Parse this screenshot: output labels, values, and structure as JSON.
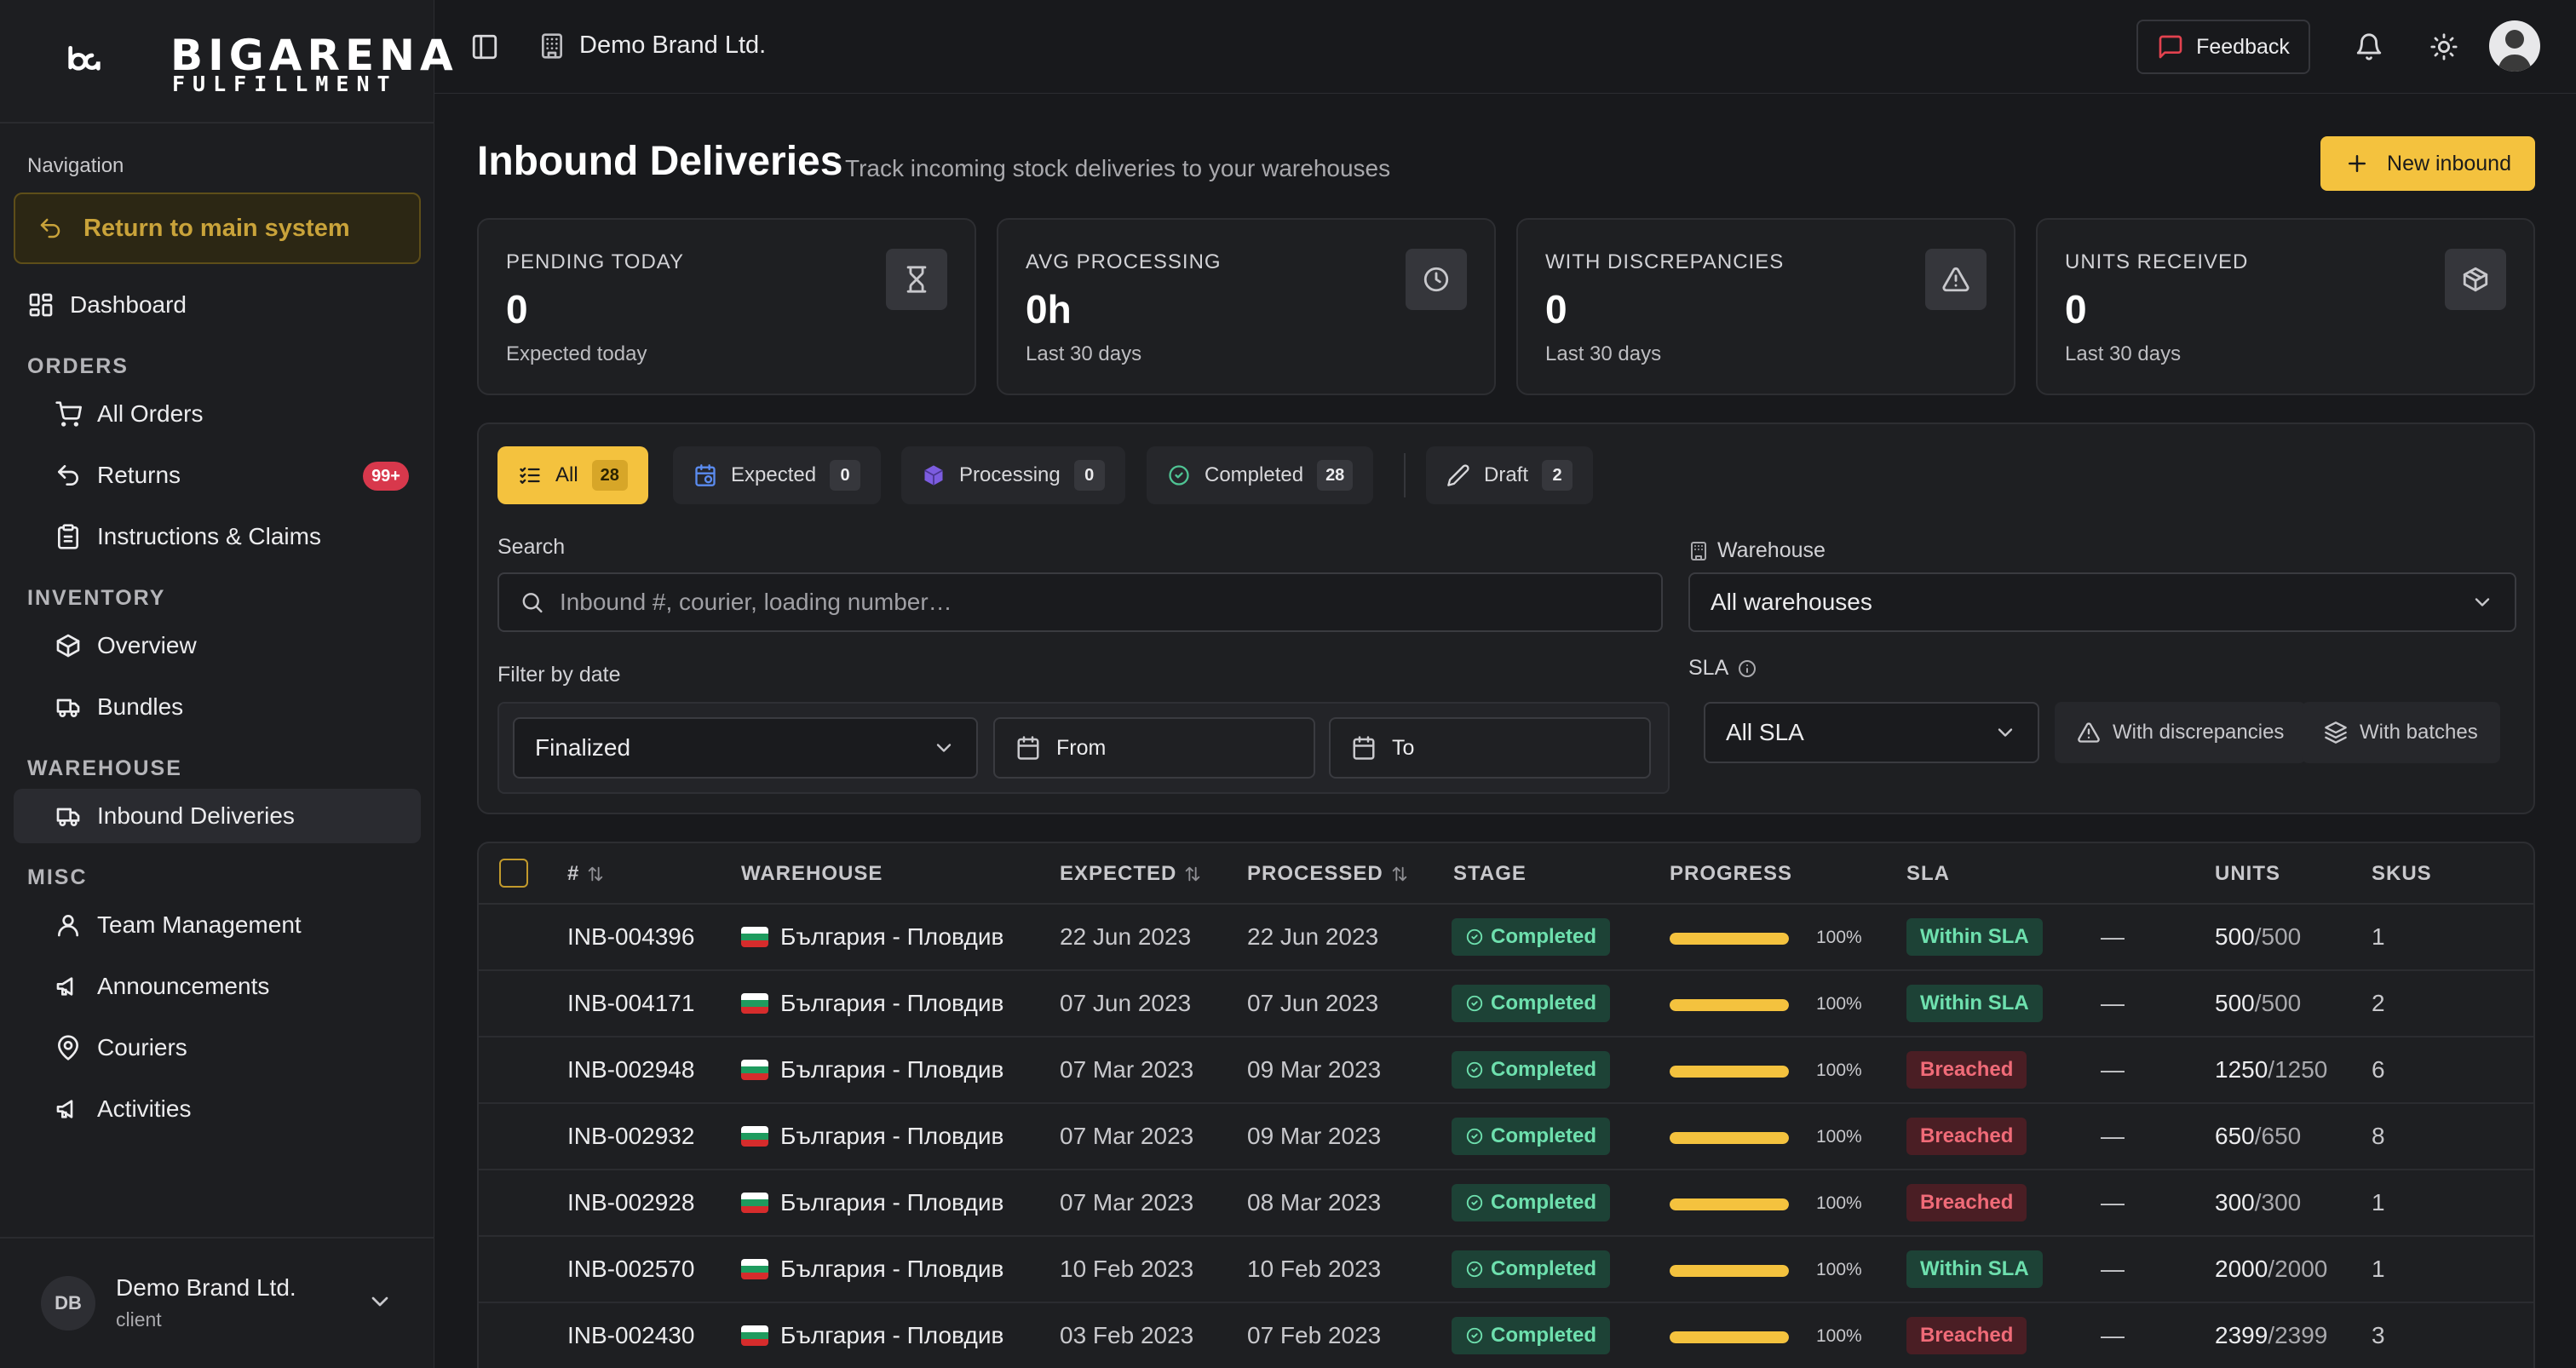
{
  "brand": {
    "logo_big": "BIGARENA",
    "logo_small": "FULFILLMENT"
  },
  "sidebar": {
    "nav_heading": "Navigation",
    "return_label": "Return to main system",
    "dashboard": "Dashboard",
    "sections": {
      "orders": "ORDERS",
      "inventory": "INVENTORY",
      "warehouse": "WAREHOUSE",
      "misc": "MISC"
    },
    "items": {
      "all_orders": "All Orders",
      "returns": "Returns",
      "returns_badge": "99+",
      "instructions": "Instructions & Claims",
      "overview": "Overview",
      "bundles": "Bundles",
      "inbound": "Inbound Deliveries",
      "team": "Team Management",
      "announcements": "Announcements",
      "couriers": "Couriers",
      "activities": "Activities"
    },
    "user": {
      "initials": "DB",
      "name": "Demo Brand Ltd.",
      "role": "client"
    }
  },
  "topbar": {
    "brand": "Demo Brand Ltd.",
    "feedback": "Feedback"
  },
  "page": {
    "title": "Inbound Deliveries",
    "subtitle": "Track incoming stock deliveries to your warehouses",
    "new_button": "New inbound"
  },
  "stats": [
    {
      "label": "PENDING TODAY",
      "value": "0",
      "note": "Expected today",
      "icon": "hourglass-icon"
    },
    {
      "label": "AVG PROCESSING",
      "value": "0h",
      "note": "Last 30 days",
      "icon": "clock-icon"
    },
    {
      "label": "WITH DISCREPANCIES",
      "value": "0",
      "note": "Last 30 days",
      "icon": "warning-icon"
    },
    {
      "label": "UNITS RECEIVED",
      "value": "0",
      "note": "Last 30 days",
      "icon": "box-icon"
    }
  ],
  "tabs": [
    {
      "label": "All",
      "count": "28"
    },
    {
      "label": "Expected",
      "count": "0"
    },
    {
      "label": "Processing",
      "count": "0"
    },
    {
      "label": "Completed",
      "count": "28"
    },
    {
      "label": "Draft",
      "count": "2"
    }
  ],
  "filters": {
    "search_label": "Search",
    "search_placeholder": "Inbound #, courier, loading number…",
    "warehouse_label": "Warehouse",
    "warehouse_value": "All warehouses",
    "date_label": "Filter by date",
    "date_mode": "Finalized",
    "from": "From",
    "to": "To",
    "sla_label": "SLA",
    "sla_value": "All SLA",
    "discrepancies": "With discrepancies",
    "batches": "With batches"
  },
  "table": {
    "headers": {
      "num": "#",
      "warehouse": "WAREHOUSE",
      "expected": "EXPECTED",
      "processed": "PROCESSED",
      "stage": "STAGE",
      "progress": "PROGRESS",
      "sla": "SLA",
      "units": "UNITS",
      "skus": "SKUS"
    },
    "rows": [
      {
        "id": "INB-004396",
        "warehouse": "България - Пловдив",
        "expected": "22 Jun 2023",
        "processed": "22 Jun 2023",
        "stage": "Completed",
        "progress": 100,
        "progress_label": "100%",
        "sla": "Within SLA",
        "sla_ok": true,
        "dash": "—",
        "units": "500",
        "units_total": "/500",
        "skus": "1"
      },
      {
        "id": "INB-004171",
        "warehouse": "България - Пловдив",
        "expected": "07 Jun 2023",
        "processed": "07 Jun 2023",
        "stage": "Completed",
        "progress": 100,
        "progress_label": "100%",
        "sla": "Within SLA",
        "sla_ok": true,
        "dash": "—",
        "units": "500",
        "units_total": "/500",
        "skus": "2"
      },
      {
        "id": "INB-002948",
        "warehouse": "България - Пловдив",
        "expected": "07 Mar 2023",
        "processed": "09 Mar 2023",
        "stage": "Completed",
        "progress": 100,
        "progress_label": "100%",
        "sla": "Breached",
        "sla_ok": false,
        "dash": "—",
        "units": "1250",
        "units_total": "/1250",
        "skus": "6"
      },
      {
        "id": "INB-002932",
        "warehouse": "България - Пловдив",
        "expected": "07 Mar 2023",
        "processed": "09 Mar 2023",
        "stage": "Completed",
        "progress": 100,
        "progress_label": "100%",
        "sla": "Breached",
        "sla_ok": false,
        "dash": "—",
        "units": "650",
        "units_total": "/650",
        "skus": "8"
      },
      {
        "id": "INB-002928",
        "warehouse": "България - Пловдив",
        "expected": "07 Mar 2023",
        "processed": "08 Mar 2023",
        "stage": "Completed",
        "progress": 100,
        "progress_label": "100%",
        "sla": "Breached",
        "sla_ok": false,
        "dash": "—",
        "units": "300",
        "units_total": "/300",
        "skus": "1"
      },
      {
        "id": "INB-002570",
        "warehouse": "България - Пловдив",
        "expected": "10 Feb 2023",
        "processed": "10 Feb 2023",
        "stage": "Completed",
        "progress": 100,
        "progress_label": "100%",
        "sla": "Within SLA",
        "sla_ok": true,
        "dash": "—",
        "units": "2000",
        "units_total": "/2000",
        "skus": "1"
      },
      {
        "id": "INB-002430",
        "warehouse": "България - Пловдив",
        "expected": "03 Feb 2023",
        "processed": "07 Feb 2023",
        "stage": "Completed",
        "progress": 100,
        "progress_label": "100%",
        "sla": "Breached",
        "sla_ok": false,
        "dash": "—",
        "units": "2399",
        "units_total": "/2399",
        "skus": "3"
      }
    ]
  },
  "colors": {
    "accent": "#f4c23e",
    "success": "#6ee0ae",
    "danger": "#f06b78",
    "badge_red": "#d8384c"
  }
}
